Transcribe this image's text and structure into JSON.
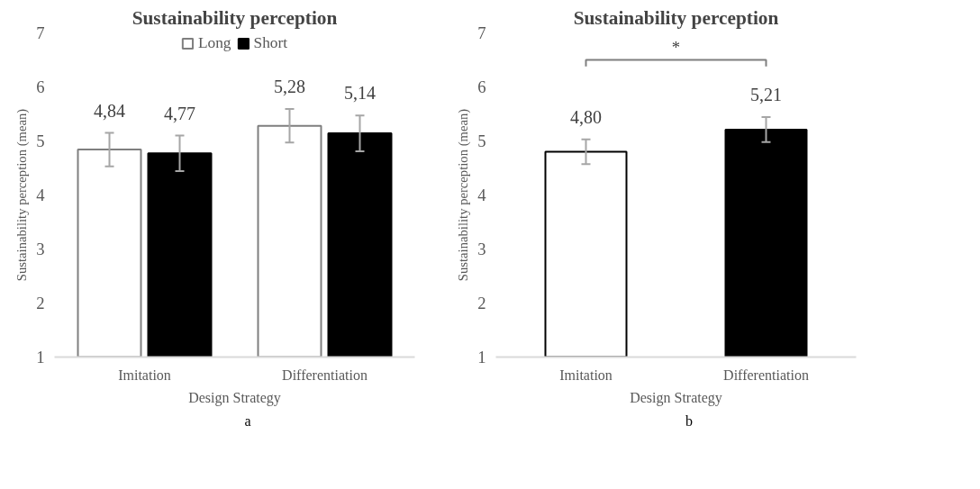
{
  "chart_data": [
    {
      "type": "bar",
      "title": "Sustainability perception",
      "xlabel": "Design Strategy",
      "ylabel": "Sustainability perception (mean)",
      "categories": [
        "Imitation",
        "Differentiation"
      ],
      "ylim": [
        1,
        7
      ],
      "yticks": [
        1,
        2,
        3,
        4,
        5,
        6,
        7
      ],
      "legend": "top",
      "grid": false,
      "series": [
        {
          "name": "Long",
          "color": "#ffffff",
          "values": [
            4.84,
            5.28
          ],
          "errors": [
            0.31,
            0.31
          ],
          "value_labels": [
            "4,84",
            "5,28"
          ]
        },
        {
          "name": "Short",
          "color": "#000000",
          "values": [
            4.77,
            5.14
          ],
          "errors": [
            0.33,
            0.33
          ],
          "value_labels": [
            "4,77",
            "5,14"
          ]
        }
      ],
      "annotations": [
        "a"
      ]
    },
    {
      "type": "bar",
      "title": "Sustainability perception",
      "xlabel": "Design Strategy",
      "ylabel": "Sustainability perception (mean)",
      "categories": [
        "Imitation",
        "Differentiation"
      ],
      "ylim": [
        1,
        7
      ],
      "yticks": [
        1,
        2,
        3,
        4,
        5,
        6,
        7
      ],
      "grid": false,
      "values": [
        4.8,
        5.21
      ],
      "colors": [
        "#ffffff",
        "#000000"
      ],
      "errors": [
        0.23,
        0.23
      ],
      "value_labels": [
        "4,80",
        "5,21"
      ],
      "annotations": [
        "*",
        "b"
      ]
    }
  ]
}
